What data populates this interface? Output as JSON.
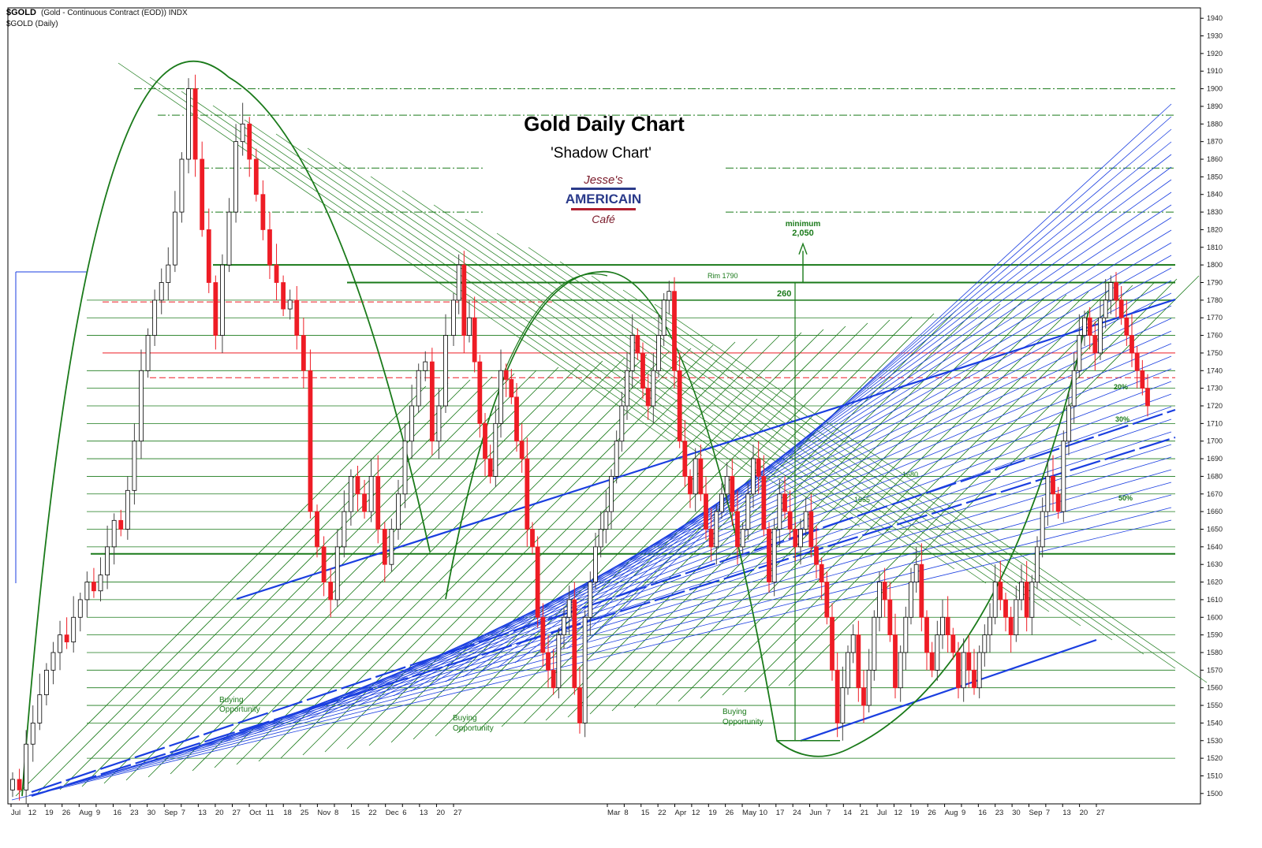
{
  "header": {
    "symbol": "$GOLD",
    "description": "(Gold - Continuous Contract (EOD)) INDX",
    "subtitle": "$GOLD (Daily)"
  },
  "logo": {
    "line1": "Jesse's",
    "line2": "AMERICAIN",
    "line3": "Café"
  },
  "colors": {
    "up": "#ffffff",
    "down": "#ee1c25",
    "green": "#1a7a1a",
    "blue": "#1a3ee0",
    "red_ref": "#ee1c25"
  },
  "chart_data": {
    "type": "candlestick",
    "title": "Gold Daily Chart",
    "subtitle": "'Shadow Chart'",
    "ylim": [
      1495,
      1945
    ],
    "y_ticks": [
      1500,
      1510,
      1520,
      1530,
      1540,
      1550,
      1560,
      1570,
      1580,
      1590,
      1600,
      1610,
      1620,
      1630,
      1640,
      1650,
      1660,
      1670,
      1680,
      1690,
      1700,
      1710,
      1720,
      1730,
      1740,
      1750,
      1760,
      1770,
      1780,
      1790,
      1800,
      1810,
      1820,
      1830,
      1840,
      1850,
      1860,
      1870,
      1880,
      1890,
      1900,
      1910,
      1920,
      1930,
      1940
    ],
    "x_labels": [
      "Jul",
      "12",
      "19",
      "26",
      "Aug",
      "9",
      "16",
      "23",
      "30",
      "Sep",
      "7",
      "13",
      "20",
      "27",
      "Oct",
      "11",
      "18",
      "25",
      "Nov",
      "8",
      "15",
      "22",
      "Dec",
      "6",
      "13",
      "20",
      "27",
      "Mar",
      "8",
      "15",
      "22",
      "Apr",
      "12",
      "19",
      "26",
      "May",
      "10",
      "17",
      "24",
      "Jun",
      "7",
      "14",
      "21",
      "Jul",
      "12",
      "19",
      "26",
      "Aug",
      "9",
      "16",
      "23",
      "30",
      "Sep",
      "7",
      "13",
      "20",
      "27"
    ],
    "closes": [
      1508,
      1502,
      1528,
      1540,
      1556,
      1570,
      1580,
      1590,
      1586,
      1600,
      1610,
      1620,
      1615,
      1624,
      1640,
      1655,
      1650,
      1672,
      1700,
      1740,
      1760,
      1780,
      1790,
      1800,
      1830,
      1860,
      1900,
      1860,
      1820,
      1790,
      1760,
      1800,
      1830,
      1870,
      1880,
      1860,
      1840,
      1820,
      1800,
      1790,
      1775,
      1780,
      1760,
      1740,
      1660,
      1640,
      1620,
      1610,
      1640,
      1660,
      1680,
      1670,
      1660,
      1680,
      1650,
      1630,
      1650,
      1670,
      1700,
      1720,
      1740,
      1745,
      1700,
      1720,
      1760,
      1780,
      1800,
      1760,
      1770,
      1745,
      1710,
      1690,
      1680,
      1710,
      1740,
      1735,
      1725,
      1700,
      1690,
      1650,
      1640,
      1600,
      1580,
      1570,
      1560,
      1590,
      1600,
      1610,
      1560,
      1540,
      1600,
      1620,
      1640,
      1650,
      1660,
      1680,
      1700,
      1720,
      1740,
      1760,
      1750,
      1730,
      1720,
      1740,
      1760,
      1780,
      1785,
      1740,
      1700,
      1680,
      1670,
      1690,
      1670,
      1650,
      1640,
      1660,
      1670,
      1680,
      1660,
      1640,
      1650,
      1670,
      1690,
      1680,
      1650,
      1620,
      1650,
      1670,
      1660,
      1650,
      1640,
      1650,
      1660,
      1640,
      1630,
      1620,
      1600,
      1570,
      1540,
      1560,
      1580,
      1590,
      1560,
      1550,
      1570,
      1600,
      1620,
      1610,
      1590,
      1560,
      1580,
      1600,
      1620,
      1630,
      1600,
      1580,
      1570,
      1590,
      1600,
      1590,
      1580,
      1560,
      1580,
      1570,
      1560,
      1580,
      1590,
      1600,
      1620,
      1610,
      1600,
      1590,
      1610,
      1620,
      1600,
      1620,
      1640,
      1660,
      1680,
      1670,
      1660,
      1700,
      1720,
      1740,
      1760,
      1770,
      1760,
      1750,
      1770,
      1780,
      1790,
      1780,
      1770,
      1760,
      1750,
      1740,
      1730,
      1720
    ]
  },
  "annotations": {
    "buy1": "Buying",
    "buy1b": "Opportunity",
    "buy2": "Buying",
    "buy2b": "Opportunity",
    "buy3": "Buying",
    "buy3b": "Opportunity",
    "minimum": "minimum",
    "minimum_val": "2,050",
    "rim": "Rim  1790",
    "measure": "260",
    "lvl1680": "1680",
    "lvl1665": "1665",
    "pct20": "20%",
    "pct30": "30%",
    "pct50": "50%"
  }
}
